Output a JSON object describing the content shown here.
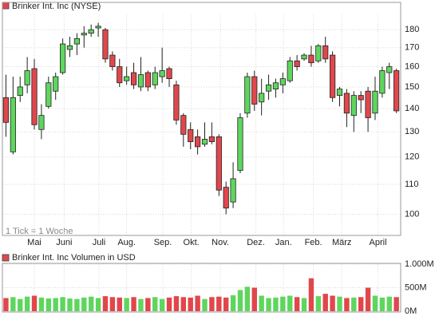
{
  "chart_data": [
    {
      "type": "candlestick",
      "title": "Brinker Int. Inc (NYSE)",
      "annotation": "1 Tick = 1 Woche",
      "log_scale": true,
      "grid": true,
      "up_color": "#5ed65e",
      "down_color": "#e0474c",
      "legend_color": "#e0474c",
      "x": [
        0,
        1,
        2,
        3,
        4,
        5,
        6,
        7,
        8,
        9,
        10,
        11,
        12,
        13,
        14,
        15,
        16,
        17,
        18,
        19,
        20,
        21,
        22,
        23,
        24,
        25,
        26,
        27,
        28,
        29,
        30,
        31,
        32,
        33,
        34,
        35,
        36,
        37,
        38,
        39,
        40,
        41,
        42,
        43,
        44,
        45,
        46,
        47,
        48,
        49,
        50,
        51,
        52,
        53,
        54,
        55
      ],
      "xlim": [
        -0.5,
        55.6
      ],
      "xticks": [
        {
          "value": 4,
          "label": "Mai"
        },
        {
          "value": 8.2,
          "label": "Juni"
        },
        {
          "value": 13.1,
          "label": "Juli"
        },
        {
          "value": 17,
          "label": "Aug."
        },
        {
          "value": 22.1,
          "label": "Sep."
        },
        {
          "value": 26.1,
          "label": "Okt."
        },
        {
          "value": 30.2,
          "label": "Nov."
        },
        {
          "value": 35.2,
          "label": "Dez."
        },
        {
          "value": 39.1,
          "label": "Jan."
        },
        {
          "value": 43.3,
          "label": "Feb."
        },
        {
          "value": 47.3,
          "label": "März"
        },
        {
          "value": 52.4,
          "label": "April"
        }
      ],
      "open": [
        145,
        122,
        146,
        151,
        159,
        131,
        141,
        148,
        157,
        169,
        172,
        177,
        178,
        181,
        180,
        166,
        160,
        153,
        157,
        150,
        157,
        151,
        155,
        159,
        151,
        137,
        131,
        128,
        125,
        128,
        128,
        109,
        104,
        115,
        138,
        155,
        143,
        148,
        149,
        151,
        153,
        163,
        164,
        166,
        163,
        171,
        166,
        146,
        147,
        137,
        146,
        148,
        138,
        147,
        157,
        158
      ],
      "high": [
        156,
        155,
        155,
        165,
        164,
        142,
        155,
        157,
        175,
        176,
        178,
        182,
        183,
        184,
        181,
        168,
        164,
        160,
        162,
        165,
        158,
        160,
        170,
        160,
        153,
        138,
        134,
        131,
        134,
        134,
        129,
        111,
        118,
        138,
        157,
        158,
        154,
        156,
        154,
        157,
        165,
        166,
        167,
        171,
        172,
        176,
        168,
        150,
        149,
        148,
        148,
        150,
        155,
        160,
        162,
        159
      ],
      "low": [
        128,
        121,
        143,
        147,
        131,
        127,
        140,
        144,
        156,
        165,
        166,
        170,
        176,
        176,
        162,
        158,
        150,
        151,
        149,
        148,
        148,
        149,
        152,
        150,
        133,
        124,
        123,
        121,
        124,
        125,
        106,
        100,
        102,
        114,
        136,
        139,
        137,
        144,
        145,
        147,
        152,
        158,
        163,
        160,
        162,
        162,
        143,
        141,
        132,
        130,
        138,
        130,
        135,
        145,
        149,
        138
      ],
      "close": [
        134,
        145,
        150,
        158,
        133,
        137,
        152,
        155,
        172,
        171,
        175,
        178,
        180,
        182,
        164,
        160,
        152,
        155,
        151,
        156,
        150,
        157,
        158,
        154,
        135,
        129,
        126,
        124,
        127,
        126,
        108,
        102,
        112,
        136,
        155,
        142,
        147,
        151,
        152,
        154,
        163,
        160,
        166,
        162,
        171,
        164,
        145,
        149,
        138,
        146,
        144,
        136,
        148,
        158,
        160,
        139
      ],
      "ylim": [
        93.5,
        189
      ],
      "yticks": [
        100,
        110,
        120,
        130,
        140,
        150,
        160,
        170,
        180
      ]
    },
    {
      "type": "bar",
      "title": "Brinker Int. Inc Volumen in USD",
      "legend_color": "#e0474c",
      "grid": true,
      "values": [
        280,
        300,
        260,
        310,
        330,
        290,
        270,
        280,
        300,
        270,
        260,
        290,
        310,
        280,
        320,
        300,
        290,
        280,
        300,
        260,
        280,
        300,
        260,
        290,
        320,
        300,
        290,
        330,
        260,
        300,
        310,
        290,
        340,
        450,
        520,
        500,
        330,
        280,
        290,
        310,
        330,
        300,
        280,
        700,
        320,
        370,
        330,
        310,
        280,
        290,
        300,
        500,
        330,
        290,
        310,
        300
      ],
      "ylim": [
        0,
        1000
      ],
      "yticks": [
        {
          "value": 1000,
          "label": "1.000M"
        },
        {
          "value": 500,
          "label": "500M"
        },
        {
          "value": 0,
          "label": "0M"
        }
      ]
    }
  ]
}
